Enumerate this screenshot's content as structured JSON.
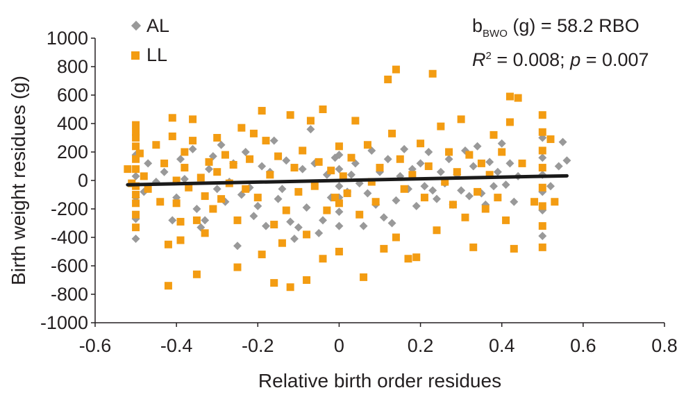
{
  "chart_data": {
    "type": "scatter",
    "xlabel": "Relative birth order residues",
    "ylabel": "Birth weight residues (g)",
    "xlim": [
      -0.6,
      0.8
    ],
    "ylim": [
      -1000,
      1000
    ],
    "x_ticks": [
      "-0.6",
      "-0.4",
      "-0.2",
      "0",
      "0.2",
      "0.4",
      "0.6",
      "0.8"
    ],
    "y_ticks": [
      "1000",
      "800",
      "600",
      "400",
      "200",
      "0",
      "-200",
      "-400",
      "-600",
      "-800",
      "-1000"
    ],
    "grid": false,
    "legend_position": "top-left",
    "annotation": {
      "line1_b": "b",
      "line1_sub": "BWO",
      "line1_rest": " (g) = 58.2 RBO",
      "line2_R": "R",
      "line2_sup": "2",
      "line2_mid": " = 0.008; ",
      "line2_p": "p",
      "line2_end": " = 0.007"
    },
    "trend_line": {
      "slope": 58.2,
      "intercept": 0,
      "x_range": [
        -0.52,
        0.56
      ],
      "color": "#1a1a1a"
    },
    "series": [
      {
        "name": "AL",
        "color": "#999999",
        "marker": "diamond",
        "points": [
          [
            -0.5,
            -410
          ],
          [
            -0.5,
            -270
          ],
          [
            -0.5,
            -120
          ],
          [
            -0.5,
            30
          ],
          [
            -0.5,
            180
          ],
          [
            -0.48,
            -80
          ],
          [
            -0.47,
            120
          ],
          [
            -0.45,
            -10
          ],
          [
            -0.43,
            60
          ],
          [
            -0.41,
            -280
          ],
          [
            -0.4,
            -120
          ],
          [
            -0.39,
            150
          ],
          [
            -0.38,
            10
          ],
          [
            -0.36,
            220
          ],
          [
            -0.35,
            -200
          ],
          [
            -0.34,
            -330
          ],
          [
            -0.33,
            -280
          ],
          [
            -0.32,
            80
          ],
          [
            -0.31,
            170
          ],
          [
            -0.3,
            -60
          ],
          [
            -0.29,
            250
          ],
          [
            -0.28,
            -150
          ],
          [
            -0.27,
            -10
          ],
          [
            -0.26,
            120
          ],
          [
            -0.25,
            -460
          ],
          [
            -0.24,
            -100
          ],
          [
            -0.23,
            200
          ],
          [
            -0.22,
            -50
          ],
          [
            -0.21,
            -250
          ],
          [
            -0.2,
            -180
          ],
          [
            -0.19,
            100
          ],
          [
            -0.18,
            -320
          ],
          [
            -0.17,
            60
          ],
          [
            -0.16,
            280
          ],
          [
            -0.15,
            -130
          ],
          [
            -0.14,
            -60
          ],
          [
            -0.13,
            140
          ],
          [
            -0.12,
            -290
          ],
          [
            -0.11,
            -410
          ],
          [
            -0.1,
            -330
          ],
          [
            -0.09,
            80
          ],
          [
            -0.08,
            -190
          ],
          [
            -0.07,
            360
          ],
          [
            -0.06,
            120
          ],
          [
            -0.05,
            -370
          ],
          [
            -0.04,
            -280
          ],
          [
            -0.03,
            40
          ],
          [
            -0.02,
            -120
          ],
          [
            -0.01,
            160
          ],
          [
            0,
            -320
          ],
          [
            0,
            -220
          ],
          [
            0,
            -120
          ],
          [
            0,
            -40
          ],
          [
            0,
            80
          ],
          [
            0,
            180
          ],
          [
            0.02,
            -80
          ],
          [
            0.03,
            40
          ],
          [
            0.04,
            120
          ],
          [
            0.05,
            -20
          ],
          [
            0.06,
            -320
          ],
          [
            0.07,
            -90
          ],
          [
            0.08,
            210
          ],
          [
            0.09,
            -170
          ],
          [
            0.1,
            60
          ],
          [
            0.11,
            -260
          ],
          [
            0.12,
            150
          ],
          [
            0.13,
            -300
          ],
          [
            0.14,
            -140
          ],
          [
            0.15,
            30
          ],
          [
            0.16,
            220
          ],
          [
            0.17,
            -60
          ],
          [
            0.18,
            80
          ],
          [
            0.19,
            -180
          ],
          [
            0.2,
            120
          ],
          [
            0.21,
            -40
          ],
          [
            0.22,
            200
          ],
          [
            0.23,
            -70
          ],
          [
            0.24,
            -130
          ],
          [
            0.25,
            60
          ],
          [
            0.26,
            -20
          ],
          [
            0.27,
            150
          ],
          [
            0.28,
            -170
          ],
          [
            0.29,
            40
          ],
          [
            0.3,
            -70
          ],
          [
            0.31,
            210
          ],
          [
            0.32,
            -110
          ],
          [
            0.33,
            100
          ],
          [
            0.34,
            240
          ],
          [
            0.35,
            -90
          ],
          [
            0.36,
            -170
          ],
          [
            0.37,
            130
          ],
          [
            0.38,
            -40
          ],
          [
            0.39,
            60
          ],
          [
            0.4,
            260
          ],
          [
            0.41,
            -30
          ],
          [
            0.42,
            120
          ],
          [
            0.43,
            -150
          ],
          [
            0.44,
            30
          ],
          [
            0.5,
            -390
          ],
          [
            0.5,
            -210
          ],
          [
            0.5,
            -80
          ],
          [
            0.5,
            40
          ],
          [
            0.5,
            160
          ],
          [
            0.5,
            300
          ],
          [
            0.52,
            -40
          ],
          [
            0.54,
            100
          ],
          [
            0.55,
            270
          ],
          [
            0.56,
            140
          ]
        ]
      },
      {
        "name": "LL",
        "color": "#f39c12",
        "marker": "square",
        "points": [
          [
            -0.52,
            80
          ],
          [
            -0.51,
            -20
          ],
          [
            -0.5,
            390
          ],
          [
            -0.5,
            340
          ],
          [
            -0.5,
            300
          ],
          [
            -0.5,
            240
          ],
          [
            -0.5,
            150
          ],
          [
            -0.5,
            80
          ],
          [
            -0.5,
            -40
          ],
          [
            -0.5,
            -100
          ],
          [
            -0.5,
            -160
          ],
          [
            -0.5,
            -240
          ],
          [
            -0.5,
            -330
          ],
          [
            -0.49,
            190
          ],
          [
            -0.48,
            30
          ],
          [
            -0.47,
            -60
          ],
          [
            -0.45,
            250
          ],
          [
            -0.44,
            -150
          ],
          [
            -0.43,
            120
          ],
          [
            -0.42,
            -450
          ],
          [
            -0.42,
            -740
          ],
          [
            -0.41,
            440
          ],
          [
            -0.41,
            310
          ],
          [
            -0.4,
            0
          ],
          [
            -0.4,
            -160
          ],
          [
            -0.39,
            -290
          ],
          [
            -0.39,
            -420
          ],
          [
            -0.38,
            200
          ],
          [
            -0.38,
            90
          ],
          [
            -0.37,
            -50
          ],
          [
            -0.36,
            430
          ],
          [
            -0.36,
            280
          ],
          [
            -0.35,
            -280
          ],
          [
            -0.35,
            -660
          ],
          [
            -0.34,
            20
          ],
          [
            -0.33,
            -370
          ],
          [
            -0.33,
            -110
          ],
          [
            -0.32,
            130
          ],
          [
            -0.31,
            -200
          ],
          [
            -0.3,
            300
          ],
          [
            -0.3,
            60
          ],
          [
            -0.29,
            -130
          ],
          [
            -0.28,
            180
          ],
          [
            -0.27,
            -20
          ],
          [
            -0.26,
            110
          ],
          [
            -0.25,
            -280
          ],
          [
            -0.25,
            -610
          ],
          [
            -0.24,
            370
          ],
          [
            -0.23,
            -60
          ],
          [
            -0.22,
            150
          ],
          [
            -0.21,
            330
          ],
          [
            -0.2,
            -120
          ],
          [
            -0.19,
            490
          ],
          [
            -0.19,
            -520
          ],
          [
            -0.18,
            280
          ],
          [
            -0.17,
            40
          ],
          [
            -0.16,
            -310
          ],
          [
            -0.16,
            -720
          ],
          [
            -0.15,
            170
          ],
          [
            -0.14,
            -440
          ],
          [
            -0.13,
            -210
          ],
          [
            -0.12,
            460
          ],
          [
            -0.12,
            -750
          ],
          [
            -0.11,
            90
          ],
          [
            -0.1,
            -80
          ],
          [
            -0.09,
            210
          ],
          [
            -0.08,
            -380
          ],
          [
            -0.08,
            -700
          ],
          [
            -0.07,
            420
          ],
          [
            -0.06,
            -40
          ],
          [
            -0.05,
            130
          ],
          [
            -0.04,
            500
          ],
          [
            -0.04,
            -550
          ],
          [
            -0.03,
            -210
          ],
          [
            -0.02,
            70
          ],
          [
            -0.01,
            -120
          ],
          [
            0,
            240
          ],
          [
            0,
            -160
          ],
          [
            0,
            -500
          ],
          [
            0.01,
            30
          ],
          [
            0.02,
            -90
          ],
          [
            0.03,
            160
          ],
          [
            0.04,
            420
          ],
          [
            0.05,
            -240
          ],
          [
            0.06,
            -680
          ],
          [
            0.07,
            250
          ],
          [
            0.08,
            -10
          ],
          [
            0.09,
            -150
          ],
          [
            0.1,
            90
          ],
          [
            0.11,
            -480
          ],
          [
            0.12,
            710
          ],
          [
            0.13,
            330
          ],
          [
            0.14,
            780
          ],
          [
            0.14,
            -400
          ],
          [
            0.15,
            150
          ],
          [
            0.16,
            -60
          ],
          [
            0.17,
            -550
          ],
          [
            0.18,
            40
          ],
          [
            0.19,
            -540
          ],
          [
            0.2,
            260
          ],
          [
            0.21,
            -120
          ],
          [
            0.22,
            100
          ],
          [
            0.23,
            750
          ],
          [
            0.24,
            -350
          ],
          [
            0.25,
            380
          ],
          [
            0.26,
            -10
          ],
          [
            0.27,
            200
          ],
          [
            0.28,
            -170
          ],
          [
            0.29,
            60
          ],
          [
            0.3,
            430
          ],
          [
            0.31,
            -260
          ],
          [
            0.32,
            180
          ],
          [
            0.33,
            -470
          ],
          [
            0.34,
            -80
          ],
          [
            0.35,
            120
          ],
          [
            0.36,
            -200
          ],
          [
            0.37,
            40
          ],
          [
            0.38,
            320
          ],
          [
            0.39,
            -120
          ],
          [
            0.4,
            200
          ],
          [
            0.41,
            -280
          ],
          [
            0.42,
            590
          ],
          [
            0.42,
            410
          ],
          [
            0.43,
            -480
          ],
          [
            0.44,
            580
          ],
          [
            0.45,
            120
          ],
          [
            0.48,
            -150
          ],
          [
            0.5,
            460
          ],
          [
            0.5,
            340
          ],
          [
            0.5,
            210
          ],
          [
            0.5,
            90
          ],
          [
            0.5,
            -50
          ],
          [
            0.5,
            -180
          ],
          [
            0.5,
            -320
          ],
          [
            0.5,
            -470
          ],
          [
            0.52,
            290
          ],
          [
            0.53,
            -150
          ]
        ]
      }
    ]
  }
}
